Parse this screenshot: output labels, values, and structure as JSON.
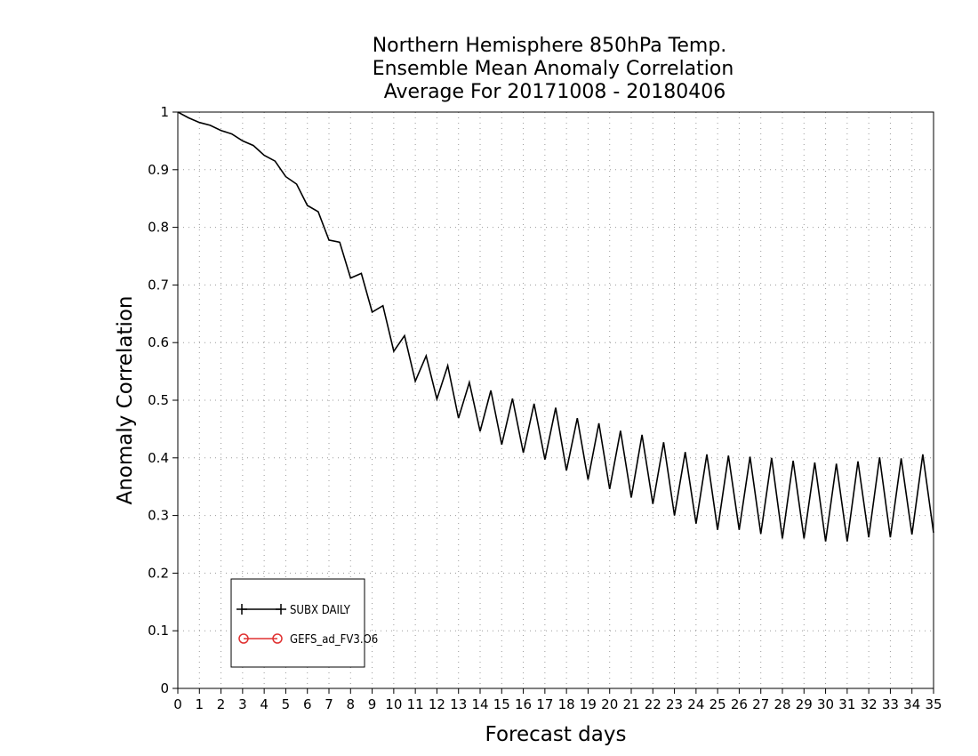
{
  "chart_data": {
    "type": "line",
    "title_lines": [
      "Northern Hemisphere 850hPa Temp.",
      "Ensemble Mean Anomaly Correlation",
      "Average For 20171008 - 20180406"
    ],
    "xlabel": "Forecast days",
    "ylabel": "Anomaly Correlation",
    "xlim": [
      0,
      35
    ],
    "ylim": [
      0,
      1
    ],
    "x_ticks": [
      0,
      1,
      2,
      3,
      4,
      5,
      6,
      7,
      8,
      9,
      10,
      11,
      12,
      13,
      14,
      15,
      16,
      17,
      18,
      19,
      20,
      21,
      22,
      23,
      24,
      25,
      26,
      27,
      28,
      29,
      30,
      31,
      32,
      33,
      34,
      35
    ],
    "x_tick_labels": [
      "0",
      "1",
      "2",
      "3",
      "4",
      "5",
      "6",
      "7",
      "8",
      "9",
      "10",
      "11",
      "12",
      "13",
      "14",
      "15",
      "16",
      "17",
      "18",
      "19",
      "20",
      "21",
      "22",
      "23",
      "24",
      "25",
      "26",
      "27",
      "28",
      "29",
      "30",
      "31",
      "32",
      "33",
      "34",
      "35"
    ],
    "y_ticks": [
      0,
      0.1,
      0.2,
      0.3,
      0.4,
      0.5,
      0.6,
      0.7,
      0.8,
      0.9,
      1
    ],
    "y_tick_labels": [
      "0",
      "0.1",
      "0.2",
      "0.3",
      "0.4",
      "0.5",
      "0.6",
      "0.7",
      "0.8",
      "0.9",
      "1"
    ],
    "grid": true,
    "legend_position": "bottom-left",
    "series": [
      {
        "name": "SUBX DAILY",
        "color": "#000000",
        "marker": "plus",
        "x": [
          0,
          0.5,
          1,
          1.5,
          2,
          2.5,
          3,
          3.5,
          4,
          4.5,
          5,
          5.5,
          6,
          6.5,
          7,
          7.5,
          8,
          8.5,
          9,
          9.5,
          10,
          10.5,
          11,
          11.5,
          12,
          12.5,
          13,
          13.5,
          14,
          14.5,
          15,
          15.5,
          16,
          16.5,
          17,
          17.5,
          18,
          18.5,
          19,
          19.5,
          20,
          20.5,
          21,
          21.5,
          22,
          22.5,
          23,
          23.5,
          24,
          24.5,
          25,
          25.5,
          26,
          26.5,
          27,
          27.5,
          28,
          28.5,
          29,
          29.5,
          30,
          30.5,
          31,
          31.5,
          32,
          32.5,
          33,
          33.5,
          34,
          34.5,
          35
        ],
        "y": [
          1.0,
          0.99,
          0.982,
          0.977,
          0.968,
          0.962,
          0.95,
          0.942,
          0.925,
          0.915,
          0.888,
          0.875,
          0.838,
          0.827,
          0.778,
          0.774,
          0.712,
          0.72,
          0.653,
          0.664,
          0.585,
          0.612,
          0.533,
          0.577,
          0.502,
          0.56,
          0.469,
          0.531,
          0.446,
          0.517,
          0.423,
          0.503,
          0.409,
          0.494,
          0.397,
          0.487,
          0.378,
          0.469,
          0.362,
          0.46,
          0.346,
          0.447,
          0.331,
          0.44,
          0.32,
          0.427,
          0.3,
          0.41,
          0.286,
          0.406,
          0.275,
          0.404,
          0.275,
          0.402,
          0.268,
          0.4,
          0.26,
          0.395,
          0.26,
          0.392,
          0.255,
          0.39,
          0.255,
          0.394,
          0.262,
          0.401,
          0.262,
          0.399,
          0.267,
          0.406,
          0.27
        ]
      },
      {
        "name": "GEFS_ad_FV3.O6",
        "color": "#e03030",
        "marker": "circle",
        "x": [],
        "y": []
      }
    ]
  }
}
